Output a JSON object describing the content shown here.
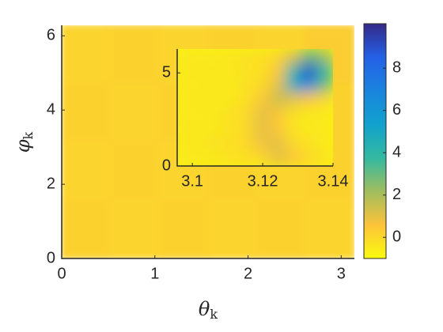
{
  "chart_data": {
    "type": "heatmap",
    "xlabel": "θ",
    "xlabel_subscript": "k",
    "ylabel": "φ",
    "ylabel_subscript": "k",
    "xlim": [
      0,
      3.1416
    ],
    "ylim": [
      0,
      6.2832
    ],
    "xticks": [
      0,
      1,
      2,
      3
    ],
    "yticks": [
      0,
      2,
      4,
      6
    ],
    "z": [
      [
        0.1,
        0.2,
        0.1,
        0.2,
        0.1,
        0.3
      ],
      [
        0.2,
        0.1,
        0.2,
        0.1,
        0.2,
        0.2
      ],
      [
        0.1,
        0.2,
        0.1,
        0.2,
        0.1,
        0.2
      ],
      [
        0.2,
        0.1,
        0.2,
        0.1,
        0.2,
        0.1
      ]
    ],
    "clim": [
      -1,
      10.1
    ],
    "colormap": [
      "#f9fb0e",
      "#fcc33a",
      "#a0bd5f",
      "#34b9a0",
      "#12a2cd",
      "#1a84de",
      "#2560e6",
      "#352a87"
    ],
    "cticks": [
      0,
      2,
      4,
      6,
      8
    ],
    "inset": {
      "xlim": [
        3.0957,
        3.14
      ],
      "ylim": [
        0,
        6.2832
      ],
      "xticks": [
        3.1,
        3.12,
        3.14
      ],
      "yticks": [
        0,
        5
      ],
      "z": [
        [
          -0.5,
          -0.5,
          -0.5,
          -0.4,
          -0.3,
          -0.2,
          0,
          1,
          3,
          2
        ],
        [
          -0.5,
          -0.4,
          -0.5,
          -0.4,
          -0.3,
          -0.2,
          0.5,
          4,
          9,
          4
        ],
        [
          -0.5,
          -0.5,
          -0.4,
          -0.5,
          -0.3,
          0,
          1,
          5,
          7,
          3
        ],
        [
          -0.5,
          -0.4,
          -0.5,
          -0.4,
          -0.2,
          0.5,
          1.5,
          1,
          0.5,
          0
        ],
        [
          -0.5,
          -0.5,
          -0.4,
          -0.3,
          0,
          1,
          0.5,
          -0.3,
          -0.5,
          -0.5
        ],
        [
          -0.4,
          -0.5,
          -0.4,
          -0.3,
          0,
          1,
          0.5,
          -0.3,
          -0.5,
          -0.5
        ],
        [
          -0.5,
          -0.4,
          -0.3,
          -0.2,
          0,
          0.8,
          1,
          0,
          -0.3,
          -0.5
        ],
        [
          -0.5,
          -0.5,
          -0.4,
          -0.3,
          -0.2,
          0,
          1,
          0.5,
          0,
          -0.3
        ]
      ]
    }
  }
}
